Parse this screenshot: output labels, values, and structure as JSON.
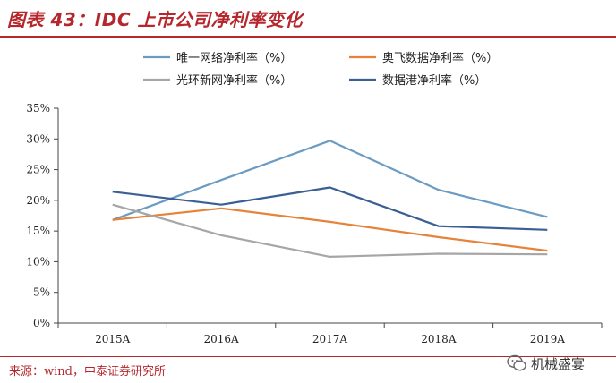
{
  "title": "图表 43：IDC 上市公司净利率变化",
  "source": "来源：wind，中泰证券研究所",
  "watermark": "机械盛宴",
  "chart_data": {
    "type": "line",
    "title": "",
    "xlabel": "",
    "ylabel": "",
    "categories": [
      "2015A",
      "2016A",
      "2017A",
      "2018A",
      "2019A"
    ],
    "ylim": [
      0,
      35
    ],
    "yticks": [
      0,
      5,
      10,
      15,
      20,
      25,
      30,
      35
    ],
    "ytick_labels": [
      "0%",
      "5%",
      "10%",
      "15%",
      "20%",
      "25%",
      "30%",
      "35%"
    ],
    "grid": false,
    "legend_position": "top",
    "series": [
      {
        "name": "唯一网络净利率（%）",
        "color": "#6a9bc3",
        "values": [
          16.8,
          23.3,
          29.7,
          21.7,
          17.3
        ]
      },
      {
        "name": "奥飞数据净利率（%）",
        "color": "#e5833a",
        "values": [
          16.8,
          18.7,
          16.5,
          14.0,
          11.8
        ]
      },
      {
        "name": "光环新网净利率（%）",
        "color": "#a6a6a6",
        "values": [
          19.3,
          14.3,
          10.8,
          11.3,
          11.2
        ]
      },
      {
        "name": "数据港净利率（%）",
        "color": "#3a5f94",
        "values": [
          21.4,
          19.3,
          22.1,
          15.8,
          15.2
        ]
      }
    ]
  }
}
